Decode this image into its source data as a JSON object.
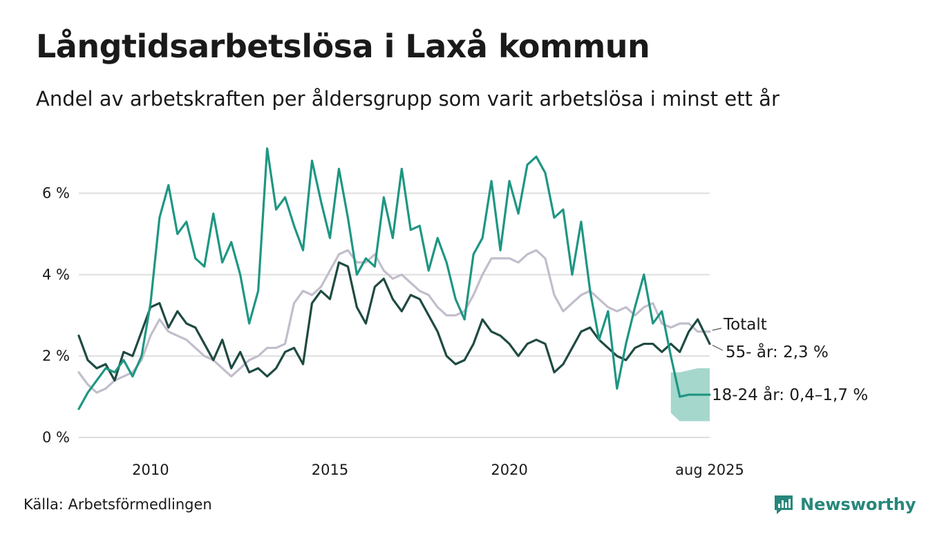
{
  "title": "Långtidsarbetslösa i Laxå kommun",
  "subtitle": "Andel av arbetskraften per åldersgrupp som varit arbetslösa i minst ett år",
  "source": "Källa: Arbetsförmedlingen",
  "brand": {
    "name": "Newsworthy",
    "icon": "newsworthy-logo-icon",
    "color": "#27877a"
  },
  "chart_data": {
    "type": "line",
    "title": "Långtidsarbetslösa i Laxå kommun",
    "subtitle": "Andel av arbetskraften per åldersgrupp som varit arbetslösa i minst ett år",
    "xlabel": "",
    "ylabel": "",
    "x_range": [
      "2008-01",
      "2025-08"
    ],
    "ylim": [
      0,
      7.2
    ],
    "y_ticks": [
      {
        "value": 0,
        "label": "0 %"
      },
      {
        "value": 2,
        "label": "2 %"
      },
      {
        "value": 4,
        "label": "4 %"
      },
      {
        "value": 6,
        "label": "6 %"
      }
    ],
    "x_ticks": [
      {
        "date": "2010-01",
        "label": "2010"
      },
      {
        "date": "2015-01",
        "label": "2015"
      },
      {
        "date": "2020-01",
        "label": "2020"
      },
      {
        "date": "2025-08",
        "label": "aug 2025"
      }
    ],
    "grid": "horizontal",
    "series": [
      {
        "name": "Totalt",
        "label": "Totalt",
        "color": "#c2bdcb",
        "points": [
          [
            "2008-01",
            1.6
          ],
          [
            "2008-04",
            1.3
          ],
          [
            "2008-07",
            1.1
          ],
          [
            "2008-10",
            1.2
          ],
          [
            "2009-01",
            1.4
          ],
          [
            "2009-04",
            1.5
          ],
          [
            "2009-07",
            1.6
          ],
          [
            "2009-10",
            1.9
          ],
          [
            "2010-01",
            2.5
          ],
          [
            "2010-04",
            2.9
          ],
          [
            "2010-07",
            2.6
          ],
          [
            "2010-10",
            2.5
          ],
          [
            "2011-01",
            2.4
          ],
          [
            "2011-04",
            2.2
          ],
          [
            "2011-07",
            2.0
          ],
          [
            "2011-10",
            1.9
          ],
          [
            "2012-01",
            1.7
          ],
          [
            "2012-04",
            1.5
          ],
          [
            "2012-07",
            1.7
          ],
          [
            "2012-10",
            1.9
          ],
          [
            "2013-01",
            2.0
          ],
          [
            "2013-04",
            2.2
          ],
          [
            "2013-07",
            2.2
          ],
          [
            "2013-10",
            2.3
          ],
          [
            "2014-01",
            3.3
          ],
          [
            "2014-04",
            3.6
          ],
          [
            "2014-07",
            3.5
          ],
          [
            "2014-10",
            3.7
          ],
          [
            "2015-01",
            4.1
          ],
          [
            "2015-04",
            4.5
          ],
          [
            "2015-07",
            4.6
          ],
          [
            "2015-10",
            4.3
          ],
          [
            "2016-01",
            4.3
          ],
          [
            "2016-04",
            4.5
          ],
          [
            "2016-07",
            4.1
          ],
          [
            "2016-10",
            3.9
          ],
          [
            "2017-01",
            4.0
          ],
          [
            "2017-04",
            3.8
          ],
          [
            "2017-07",
            3.6
          ],
          [
            "2017-10",
            3.5
          ],
          [
            "2018-01",
            3.2
          ],
          [
            "2018-04",
            3.0
          ],
          [
            "2018-07",
            3.0
          ],
          [
            "2018-10",
            3.1
          ],
          [
            "2019-01",
            3.5
          ],
          [
            "2019-04",
            4.0
          ],
          [
            "2019-07",
            4.4
          ],
          [
            "2019-10",
            4.4
          ],
          [
            "2020-01",
            4.4
          ],
          [
            "2020-04",
            4.3
          ],
          [
            "2020-07",
            4.5
          ],
          [
            "2020-10",
            4.6
          ],
          [
            "2021-01",
            4.4
          ],
          [
            "2021-04",
            3.5
          ],
          [
            "2021-07",
            3.1
          ],
          [
            "2021-10",
            3.3
          ],
          [
            "2022-01",
            3.5
          ],
          [
            "2022-04",
            3.6
          ],
          [
            "2022-07",
            3.4
          ],
          [
            "2022-10",
            3.2
          ],
          [
            "2023-01",
            3.1
          ],
          [
            "2023-04",
            3.2
          ],
          [
            "2023-07",
            3.0
          ],
          [
            "2023-10",
            3.2
          ],
          [
            "2024-01",
            3.3
          ],
          [
            "2024-04",
            2.8
          ],
          [
            "2024-07",
            2.7
          ],
          [
            "2024-10",
            2.8
          ],
          [
            "2025-01",
            2.8
          ],
          [
            "2025-04",
            2.6
          ],
          [
            "2025-08",
            2.6
          ]
        ]
      },
      {
        "name": "55- år",
        "label": "55- år: 2,3 %",
        "color": "#1f4a42",
        "points": [
          [
            "2008-01",
            2.5
          ],
          [
            "2008-04",
            1.9
          ],
          [
            "2008-07",
            1.7
          ],
          [
            "2008-10",
            1.8
          ],
          [
            "2009-01",
            1.4
          ],
          [
            "2009-04",
            2.1
          ],
          [
            "2009-07",
            2.0
          ],
          [
            "2009-10",
            2.6
          ],
          [
            "2010-01",
            3.2
          ],
          [
            "2010-04",
            3.3
          ],
          [
            "2010-07",
            2.7
          ],
          [
            "2010-10",
            3.1
          ],
          [
            "2011-01",
            2.8
          ],
          [
            "2011-04",
            2.7
          ],
          [
            "2011-07",
            2.3
          ],
          [
            "2011-10",
            1.9
          ],
          [
            "2012-01",
            2.4
          ],
          [
            "2012-04",
            1.7
          ],
          [
            "2012-07",
            2.1
          ],
          [
            "2012-10",
            1.6
          ],
          [
            "2013-01",
            1.7
          ],
          [
            "2013-04",
            1.5
          ],
          [
            "2013-07",
            1.7
          ],
          [
            "2013-10",
            2.1
          ],
          [
            "2014-01",
            2.2
          ],
          [
            "2014-04",
            1.8
          ],
          [
            "2014-07",
            3.3
          ],
          [
            "2014-10",
            3.6
          ],
          [
            "2015-01",
            3.4
          ],
          [
            "2015-04",
            4.3
          ],
          [
            "2015-07",
            4.2
          ],
          [
            "2015-10",
            3.2
          ],
          [
            "2016-01",
            2.8
          ],
          [
            "2016-04",
            3.7
          ],
          [
            "2016-07",
            3.9
          ],
          [
            "2016-10",
            3.4
          ],
          [
            "2017-01",
            3.1
          ],
          [
            "2017-04",
            3.5
          ],
          [
            "2017-07",
            3.4
          ],
          [
            "2017-10",
            3.0
          ],
          [
            "2018-01",
            2.6
          ],
          [
            "2018-04",
            2.0
          ],
          [
            "2018-07",
            1.8
          ],
          [
            "2018-10",
            1.9
          ],
          [
            "2019-01",
            2.3
          ],
          [
            "2019-04",
            2.9
          ],
          [
            "2019-07",
            2.6
          ],
          [
            "2019-10",
            2.5
          ],
          [
            "2020-01",
            2.3
          ],
          [
            "2020-04",
            2.0
          ],
          [
            "2020-07",
            2.3
          ],
          [
            "2020-10",
            2.4
          ],
          [
            "2021-01",
            2.3
          ],
          [
            "2021-04",
            1.6
          ],
          [
            "2021-07",
            1.8
          ],
          [
            "2021-10",
            2.2
          ],
          [
            "2022-01",
            2.6
          ],
          [
            "2022-04",
            2.7
          ],
          [
            "2022-07",
            2.4
          ],
          [
            "2022-10",
            2.2
          ],
          [
            "2023-01",
            2.0
          ],
          [
            "2023-04",
            1.9
          ],
          [
            "2023-07",
            2.2
          ],
          [
            "2023-10",
            2.3
          ],
          [
            "2024-01",
            2.3
          ],
          [
            "2024-04",
            2.1
          ],
          [
            "2024-07",
            2.3
          ],
          [
            "2024-10",
            2.1
          ],
          [
            "2025-01",
            2.6
          ],
          [
            "2025-04",
            2.9
          ],
          [
            "2025-08",
            2.3
          ]
        ]
      },
      {
        "name": "18-24 år",
        "label": "18-24 år: 0,4–1,7 %",
        "color": "#1e9682",
        "points": [
          [
            "2008-01",
            0.7
          ],
          [
            "2008-04",
            1.1
          ],
          [
            "2008-07",
            1.4
          ],
          [
            "2008-10",
            1.7
          ],
          [
            "2009-01",
            1.6
          ],
          [
            "2009-04",
            1.9
          ],
          [
            "2009-07",
            1.5
          ],
          [
            "2009-10",
            2.0
          ],
          [
            "2010-01",
            3.3
          ],
          [
            "2010-04",
            5.4
          ],
          [
            "2010-07",
            6.2
          ],
          [
            "2010-10",
            5.0
          ],
          [
            "2011-01",
            5.3
          ],
          [
            "2011-04",
            4.4
          ],
          [
            "2011-07",
            4.2
          ],
          [
            "2011-10",
            5.5
          ],
          [
            "2012-01",
            4.3
          ],
          [
            "2012-04",
            4.8
          ],
          [
            "2012-07",
            4.0
          ],
          [
            "2012-10",
            2.8
          ],
          [
            "2013-01",
            3.6
          ],
          [
            "2013-04",
            7.1
          ],
          [
            "2013-07",
            5.6
          ],
          [
            "2013-10",
            5.9
          ],
          [
            "2014-01",
            5.2
          ],
          [
            "2014-04",
            4.6
          ],
          [
            "2014-07",
            6.8
          ],
          [
            "2014-10",
            5.8
          ],
          [
            "2015-01",
            4.9
          ],
          [
            "2015-04",
            6.6
          ],
          [
            "2015-07",
            5.4
          ],
          [
            "2015-10",
            4.0
          ],
          [
            "2016-01",
            4.4
          ],
          [
            "2016-04",
            4.2
          ],
          [
            "2016-07",
            5.9
          ],
          [
            "2016-10",
            4.9
          ],
          [
            "2017-01",
            6.6
          ],
          [
            "2017-04",
            5.1
          ],
          [
            "2017-07",
            5.2
          ],
          [
            "2017-10",
            4.1
          ],
          [
            "2018-01",
            4.9
          ],
          [
            "2018-04",
            4.3
          ],
          [
            "2018-07",
            3.4
          ],
          [
            "2018-10",
            2.9
          ],
          [
            "2019-01",
            4.5
          ],
          [
            "2019-04",
            4.9
          ],
          [
            "2019-07",
            6.3
          ],
          [
            "2019-10",
            4.6
          ],
          [
            "2020-01",
            6.3
          ],
          [
            "2020-04",
            5.5
          ],
          [
            "2020-07",
            6.7
          ],
          [
            "2020-10",
            6.9
          ],
          [
            "2021-01",
            6.5
          ],
          [
            "2021-04",
            5.4
          ],
          [
            "2021-07",
            5.6
          ],
          [
            "2021-10",
            4.0
          ],
          [
            "2022-01",
            5.3
          ],
          [
            "2022-04",
            3.6
          ],
          [
            "2022-07",
            2.4
          ],
          [
            "2022-10",
            3.1
          ],
          [
            "2023-01",
            1.2
          ],
          [
            "2023-04",
            2.3
          ],
          [
            "2023-07",
            3.2
          ],
          [
            "2023-10",
            4.0
          ],
          [
            "2024-01",
            2.8
          ],
          [
            "2024-04",
            3.1
          ],
          [
            "2024-07",
            2.0
          ],
          [
            "2024-10",
            1.0
          ],
          [
            "2025-01",
            1.05
          ],
          [
            "2025-04",
            1.05
          ],
          [
            "2025-08",
            1.05
          ]
        ],
        "band": [
          [
            "2024-07",
            0.6,
            1.6
          ],
          [
            "2024-10",
            0.4,
            1.6
          ],
          [
            "2025-01",
            0.4,
            1.65
          ],
          [
            "2025-04",
            0.4,
            1.7
          ],
          [
            "2025-08",
            0.4,
            1.7
          ]
        ],
        "band_color": "#9bd3c8"
      }
    ]
  }
}
